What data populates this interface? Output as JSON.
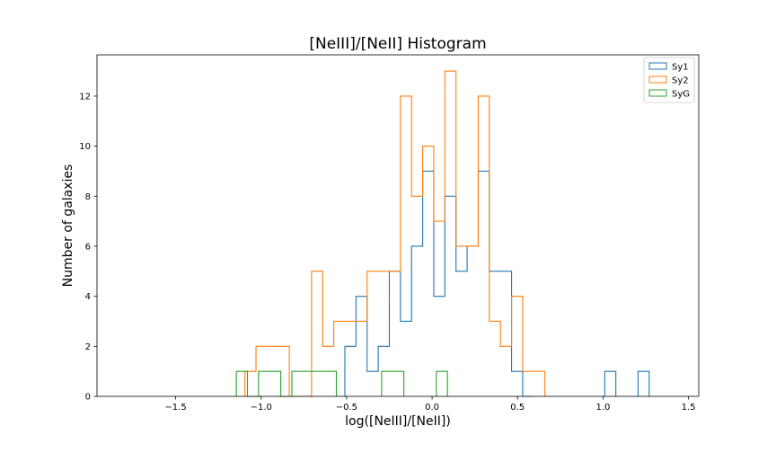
{
  "chart_data": {
    "type": "histogram",
    "title": "[NeIII]/[NeII] Histogram",
    "xlabel": "log([NeIII]/[NeII])",
    "ylabel": "Number of galaxies",
    "xlim": [
      -1.96,
      1.56
    ],
    "ylim": [
      0,
      13.65
    ],
    "x_ticks": [
      -1.5,
      -1.0,
      -0.5,
      0.0,
      0.5,
      1.0,
      1.5
    ],
    "x_tick_labels": [
      "−1.5",
      "−1.0",
      "−0.5",
      "0.0",
      "0.5",
      "1.0",
      "1.5"
    ],
    "y_ticks": [
      0,
      2,
      4,
      6,
      8,
      10,
      12
    ],
    "y_tick_labels": [
      "0",
      "2",
      "4",
      "6",
      "8",
      "10",
      "12"
    ],
    "grid": false,
    "legend_position": "top-right",
    "series": [
      {
        "name": "Sy1",
        "color": "#1f77b4",
        "segments": [
          {
            "edges": [
              -0.51,
              -0.445,
              -0.38,
              -0.315,
              -0.25,
              -0.185,
              -0.12,
              -0.055,
              0.01,
              0.075,
              0.14,
              0.205,
              0.27,
              0.335,
              0.4,
              0.465,
              0.53,
              0.595
            ],
            "counts": [
              2,
              4,
              1,
              2,
              5,
              3,
              6,
              9,
              4,
              8,
              5,
              6,
              9,
              5,
              5,
              1,
              0
            ]
          },
          {
            "edges": [
              1.01,
              1.075
            ],
            "counts": [
              1
            ]
          },
          {
            "edges": [
              1.205,
              1.27
            ],
            "counts": [
              1
            ]
          }
        ]
      },
      {
        "name": "Sy2",
        "color": "#ff7f0e",
        "segments": [
          {
            "edges": [
              -1.095,
              -1.03,
              -0.965,
              -0.9,
              -0.835,
              -0.77,
              -0.705,
              -0.64,
              -0.575,
              -0.51,
              -0.445,
              -0.38,
              -0.315,
              -0.25,
              -0.185,
              -0.12,
              -0.055,
              0.01,
              0.075,
              0.14,
              0.205,
              0.27,
              0.335,
              0.4,
              0.465,
              0.53,
              0.595,
              0.66
            ],
            "counts": [
              1,
              2,
              2,
              2,
              0,
              0,
              5,
              2,
              3,
              3,
              3,
              5,
              5,
              5,
              12,
              8,
              10,
              7,
              13,
              6,
              6,
              12,
              3,
              2,
              4,
              1,
              1
            ]
          }
        ]
      },
      {
        "name": "SyG",
        "color": "#2ca02c",
        "segments": [
          {
            "edges": [
              -1.145,
              -1.08,
              -1.015,
              -0.95,
              -0.885,
              -0.82,
              -0.755,
              -0.69,
              -0.625,
              -0.56
            ],
            "counts": [
              1,
              0,
              1,
              1,
              0,
              1,
              1,
              1,
              1
            ]
          },
          {
            "edges": [
              -0.295,
              -0.23,
              -0.165
            ],
            "counts": [
              1,
              1
            ]
          },
          {
            "edges": [
              0.025,
              0.09
            ],
            "counts": [
              1
            ]
          }
        ]
      }
    ]
  }
}
